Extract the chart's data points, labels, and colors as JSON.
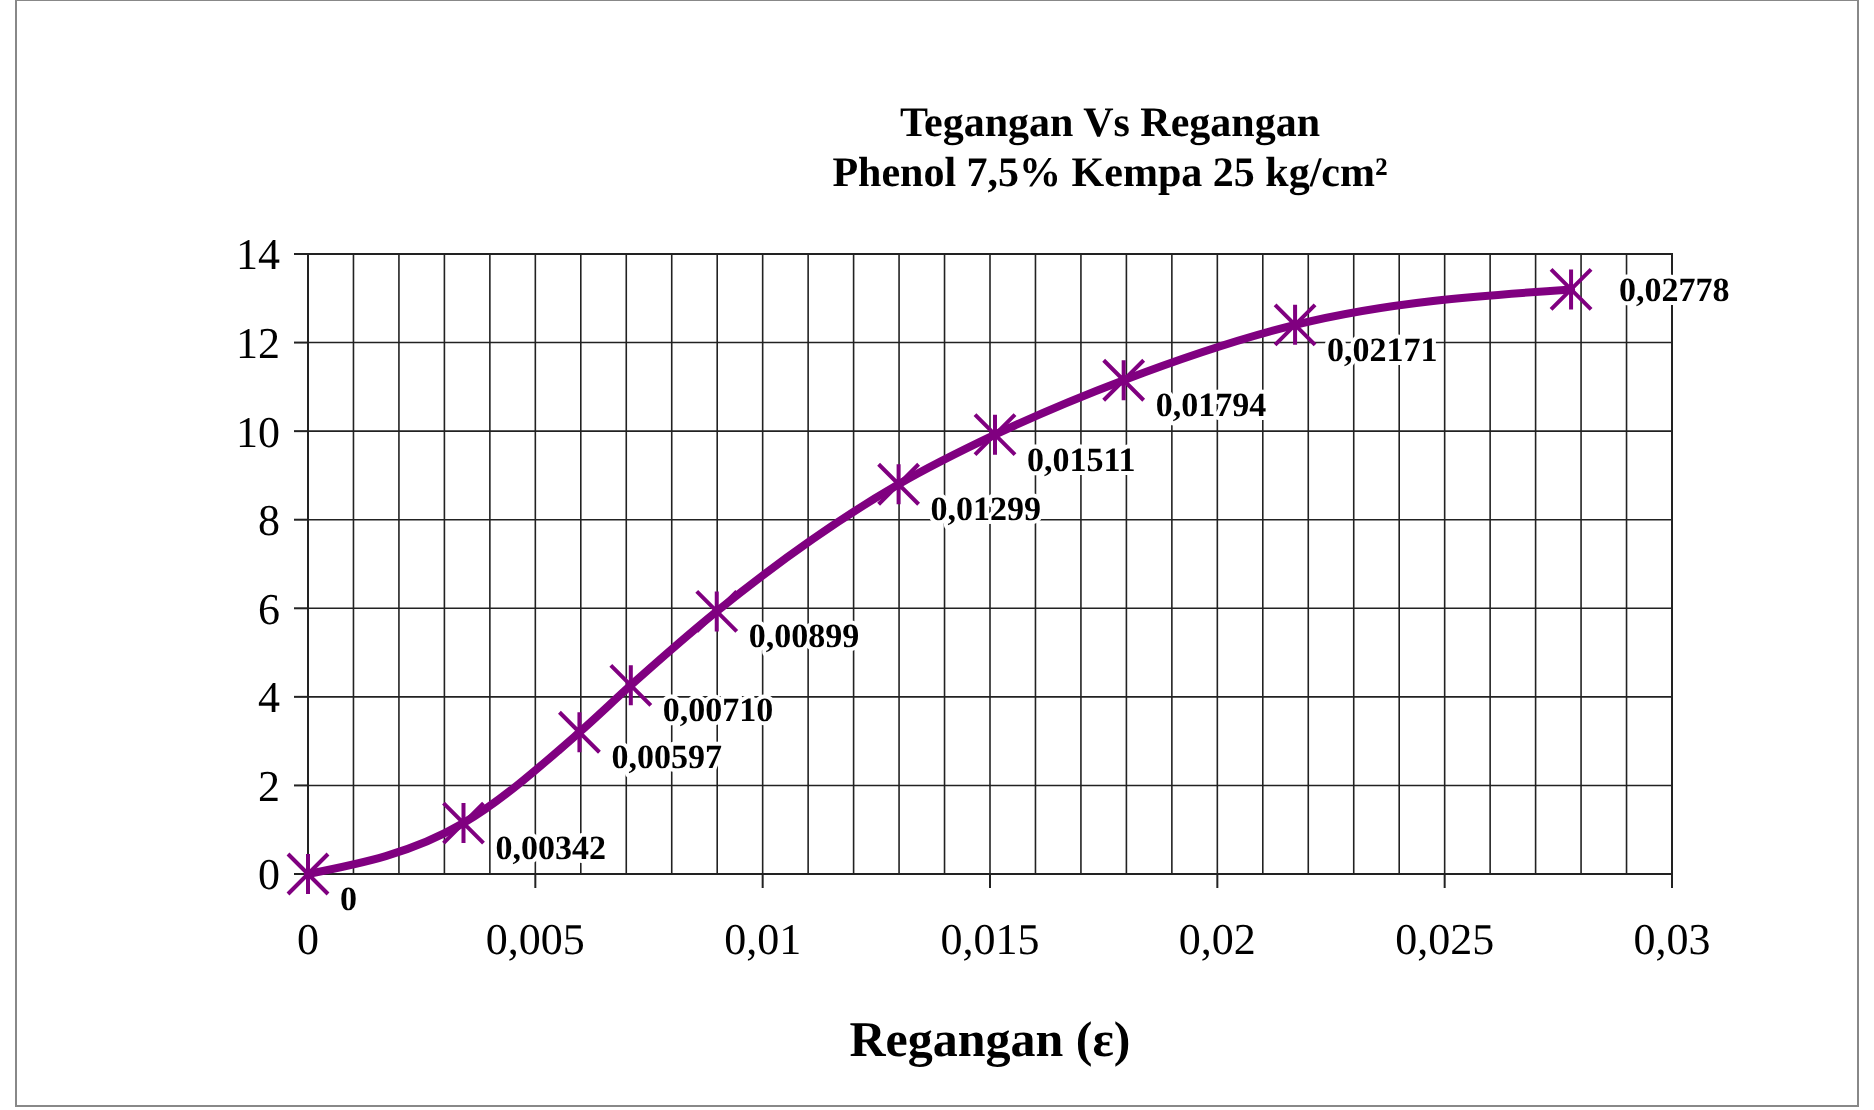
{
  "chart_data": {
    "type": "line",
    "title": "Tegangan Vs Regangan\nPhenol 7,5% Kempa 25 kg/cm²",
    "xlabel": "Regangan (ε)",
    "x": [
      0,
      0.00342,
      0.00597,
      0.0071,
      0.00899,
      0.01299,
      0.01511,
      0.01794,
      0.02171,
      0.02778
    ],
    "series": [
      {
        "color": "#800080",
        "values": [
          0,
          1.15,
          3.2,
          4.26,
          5.93,
          8.8,
          9.92,
          11.15,
          12.4,
          13.2
        ]
      }
    ],
    "annotations": [
      {
        "text": "0",
        "x": 0,
        "y": 0
      },
      {
        "text": "0,00342",
        "x": 0.00342,
        "y": 1.15
      },
      {
        "text": "0,00597",
        "x": 0.00597,
        "y": 3.2
      },
      {
        "text": "0,00710",
        "x": 0.0071,
        "y": 4.26
      },
      {
        "text": "0,00899",
        "x": 0.00899,
        "y": 5.93
      },
      {
        "text": "0,01299",
        "x": 0.01299,
        "y": 8.8
      },
      {
        "text": "0,01511",
        "x": 0.01511,
        "y": 9.92
      },
      {
        "text": "0,01794",
        "x": 0.01794,
        "y": 11.15
      },
      {
        "text": "0,02171",
        "x": 0.02171,
        "y": 12.4
      },
      {
        "text": "0,02778",
        "x": 0.02778,
        "y": 13.2
      }
    ],
    "xlim": [
      0,
      0.03
    ],
    "xticks": [
      0,
      {
        "value": 0.001,
        "label": null
      },
      {
        "value": 0.002,
        "label": null
      },
      {
        "value": 0.003,
        "label": null
      },
      {
        "value": 0.004,
        "label": null
      },
      {
        "value": 0.005,
        "label": "0,005"
      },
      {
        "value": 0.006,
        "label": null
      },
      {
        "value": 0.007,
        "label": null
      },
      {
        "value": 0.008,
        "label": null
      },
      {
        "value": 0.009,
        "label": null
      },
      {
        "value": 0.01,
        "label": "0,01"
      },
      {
        "value": 0.011,
        "label": null
      },
      {
        "value": 0.012,
        "label": null
      },
      {
        "value": 0.013,
        "label": null
      },
      {
        "value": 0.014,
        "label": null
      },
      {
        "value": 0.015,
        "label": "0,015"
      },
      {
        "value": 0.016,
        "label": null
      },
      {
        "value": 0.017,
        "label": null
      },
      {
        "value": 0.018,
        "label": null
      },
      {
        "value": 0.019,
        "label": null
      },
      {
        "value": 0.02,
        "label": "0,02"
      },
      {
        "value": 0.021,
        "label": null
      },
      {
        "value": 0.022,
        "label": null
      },
      {
        "value": 0.023,
        "label": null
      },
      {
        "value": 0.024,
        "label": null
      },
      {
        "value": 0.025,
        "label": "0,025"
      },
      {
        "value": 0.026,
        "label": null
      },
      {
        "value": 0.027,
        "label": null
      },
      {
        "value": 0.028,
        "label": null
      },
      {
        "value": 0.029,
        "label": null
      },
      {
        "value": 0.03,
        "label": "0,03"
      }
    ],
    "ylim": [
      0,
      14
    ],
    "yticks": [
      0,
      2,
      4,
      6,
      8,
      10,
      12,
      14
    ],
    "grid": true,
    "marker": "cross",
    "line_style": "solid"
  }
}
